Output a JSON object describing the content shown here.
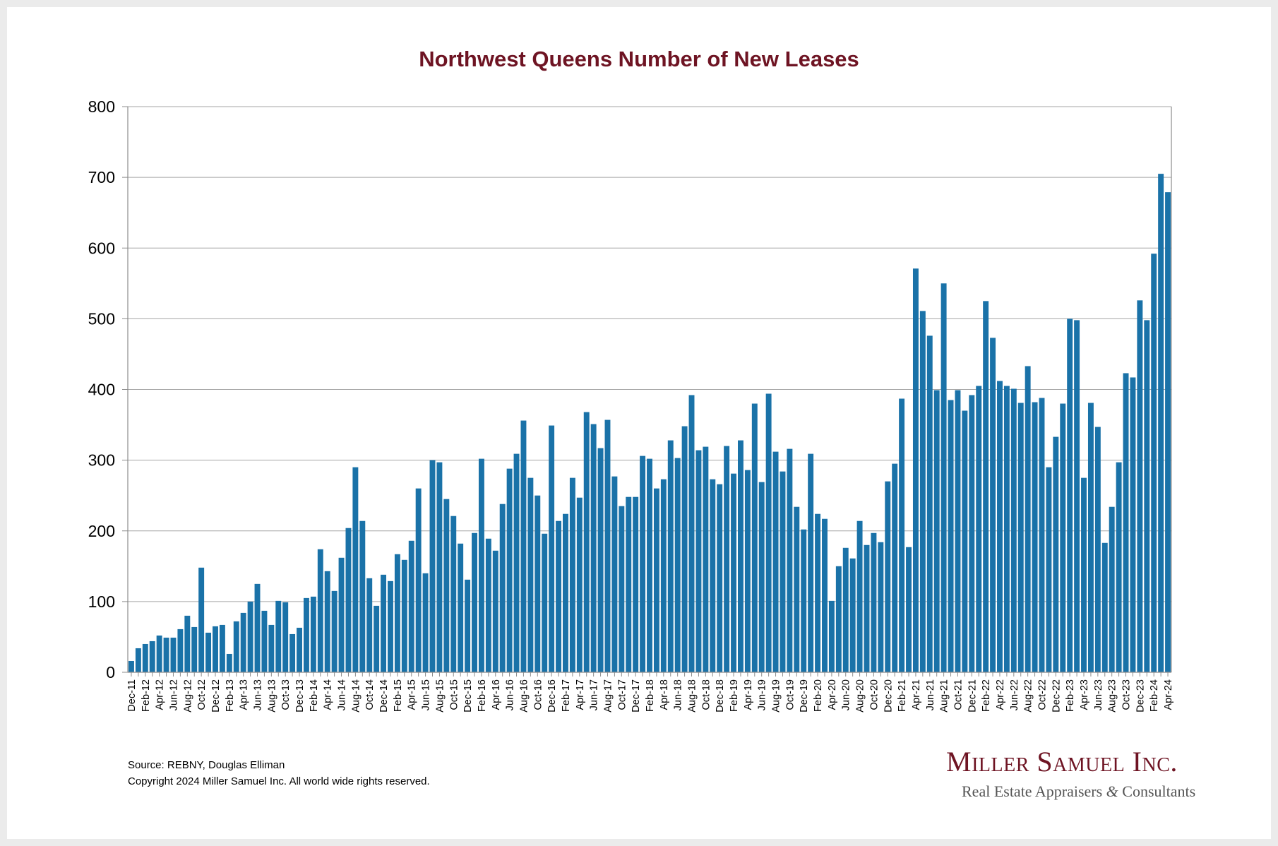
{
  "colors": {
    "bar": "#1a72a8",
    "title": "#6e1423",
    "grid": "#a6a6a6",
    "axis": "#8c8c8c"
  },
  "chart_data": {
    "type": "bar",
    "title": "Northwest Queens Number of New Leases",
    "xlabel": "",
    "ylabel": "",
    "ylim": [
      0,
      800
    ],
    "yticks": [
      0,
      100,
      200,
      300,
      400,
      500,
      600,
      700,
      800
    ],
    "grid": true,
    "categories": [
      "Dec-11",
      "Jan-12",
      "Feb-12",
      "Mar-12",
      "Apr-12",
      "May-12",
      "Jun-12",
      "Jul-12",
      "Aug-12",
      "Sep-12",
      "Oct-12",
      "Nov-12",
      "Dec-12",
      "Jan-13",
      "Feb-13",
      "Mar-13",
      "Apr-13",
      "May-13",
      "Jun-13",
      "Jul-13",
      "Aug-13",
      "Sep-13",
      "Oct-13",
      "Nov-13",
      "Dec-13",
      "Jan-14",
      "Feb-14",
      "Mar-14",
      "Apr-14",
      "May-14",
      "Jun-14",
      "Jul-14",
      "Aug-14",
      "Sep-14",
      "Oct-14",
      "Nov-14",
      "Dec-14",
      "Jan-15",
      "Feb-15",
      "Mar-15",
      "Apr-15",
      "May-15",
      "Jun-15",
      "Jul-15",
      "Aug-15",
      "Sep-15",
      "Oct-15",
      "Nov-15",
      "Dec-15",
      "Jan-16",
      "Feb-16",
      "Mar-16",
      "Apr-16",
      "May-16",
      "Jun-16",
      "Jul-16",
      "Aug-16",
      "Sep-16",
      "Oct-16",
      "Nov-16",
      "Dec-16",
      "Jan-17",
      "Feb-17",
      "Mar-17",
      "Apr-17",
      "May-17",
      "Jun-17",
      "Jul-17",
      "Aug-17",
      "Sep-17",
      "Oct-17",
      "Nov-17",
      "Dec-17",
      "Jan-18",
      "Feb-18",
      "Mar-18",
      "Apr-18",
      "May-18",
      "Jun-18",
      "Jul-18",
      "Aug-18",
      "Sep-18",
      "Oct-18",
      "Nov-18",
      "Dec-18",
      "Jan-19",
      "Feb-19",
      "Mar-19",
      "Apr-19",
      "May-19",
      "Jun-19",
      "Jul-19",
      "Aug-19",
      "Sep-19",
      "Oct-19",
      "Nov-19",
      "Dec-19",
      "Jan-20",
      "Feb-20",
      "Mar-20",
      "Apr-20",
      "May-20",
      "Jun-20",
      "Jul-20",
      "Aug-20",
      "Sep-20",
      "Oct-20",
      "Nov-20",
      "Dec-20",
      "Jan-21",
      "Feb-21",
      "Mar-21",
      "Apr-21",
      "May-21",
      "Jun-21",
      "Jul-21",
      "Aug-21",
      "Sep-21",
      "Oct-21",
      "Nov-21",
      "Dec-21",
      "Jan-22",
      "Feb-22",
      "Mar-22",
      "Apr-22",
      "May-22",
      "Jun-22",
      "Jul-22",
      "Aug-22",
      "Sep-22",
      "Oct-22",
      "Nov-22",
      "Dec-22",
      "Jan-23",
      "Feb-23",
      "Mar-23",
      "Apr-23",
      "May-23",
      "Jun-23",
      "Jul-23",
      "Aug-23",
      "Sep-23",
      "Oct-23",
      "Nov-23",
      "Dec-23",
      "Jan-24",
      "Feb-24",
      "Mar-24",
      "Apr-24"
    ],
    "tick_labels": [
      "Dec-11",
      "Feb-12",
      "Apr-12",
      "Jun-12",
      "Aug-12",
      "Oct-12",
      "Dec-12",
      "Feb-13",
      "Apr-13",
      "Jun-13",
      "Aug-13",
      "Oct-13",
      "Dec-13",
      "Feb-14",
      "Apr-14",
      "Jun-14",
      "Aug-14",
      "Oct-14",
      "Dec-14",
      "Feb-15",
      "Apr-15",
      "Jun-15",
      "Aug-15",
      "Oct-15",
      "Dec-15",
      "Feb-16",
      "Apr-16",
      "Jun-16",
      "Aug-16",
      "Oct-16",
      "Dec-16",
      "Feb-17",
      "Apr-17",
      "Jun-17",
      "Aug-17",
      "Oct-17",
      "Dec-17",
      "Feb-18",
      "Apr-18",
      "Jun-18",
      "Aug-18",
      "Oct-18",
      "Dec-18",
      "Feb-19",
      "Apr-19",
      "Jun-19",
      "Aug-19",
      "Oct-19",
      "Dec-19",
      "Feb-20",
      "Apr-20",
      "Jun-20",
      "Aug-20",
      "Oct-20",
      "Dec-20",
      "Feb-21",
      "Apr-21",
      "Jun-21",
      "Aug-21",
      "Oct-21",
      "Dec-21",
      "Feb-22",
      "Apr-22",
      "Jun-22",
      "Aug-22",
      "Oct-22",
      "Dec-22",
      "Feb-23",
      "Apr-23",
      "Jun-23",
      "Aug-23",
      "Oct-23",
      "Dec-23",
      "Feb-24",
      "Apr-24"
    ],
    "values": [
      16,
      34,
      40,
      44,
      52,
      49,
      49,
      61,
      80,
      64,
      148,
      56,
      65,
      67,
      26,
      72,
      84,
      100,
      125,
      87,
      67,
      101,
      99,
      54,
      63,
      105,
      107,
      174,
      143,
      115,
      162,
      204,
      290,
      214,
      133,
      94,
      138,
      129,
      167,
      159,
      186,
      260,
      140,
      300,
      297,
      245,
      221,
      182,
      131,
      197,
      302,
      189,
      172,
      238,
      288,
      309,
      356,
      275,
      250,
      196,
      349,
      214,
      224,
      275,
      247,
      368,
      351,
      317,
      357,
      277,
      235,
      248,
      248,
      306,
      302,
      260,
      273,
      328,
      303,
      348,
      392,
      314,
      319,
      273,
      266,
      320,
      281,
      328,
      286,
      380,
      269,
      394,
      312,
      284,
      316,
      234,
      202,
      309,
      224,
      217,
      101,
      150,
      176,
      161,
      214,
      180,
      197,
      184,
      270,
      295,
      387,
      177,
      571,
      511,
      476,
      399,
      550,
      385,
      399,
      370,
      392,
      405,
      525,
      473,
      412,
      405,
      401,
      381,
      433,
      382,
      388,
      290,
      333,
      380,
      500,
      498,
      275,
      381,
      347,
      183,
      234,
      297,
      423,
      417,
      526,
      498,
      592,
      705,
      679
    ]
  },
  "footer": {
    "source": "Source: REBNY, Douglas Elliman",
    "copyright": "Copyright 2024 Miller Samuel Inc.  All world wide rights reserved."
  },
  "logo": {
    "name": "Miller Samuel Inc.",
    "tagline_part1": "Real Estate Appraisers ",
    "tagline_amp": "&",
    "tagline_part2": " Consultants"
  }
}
